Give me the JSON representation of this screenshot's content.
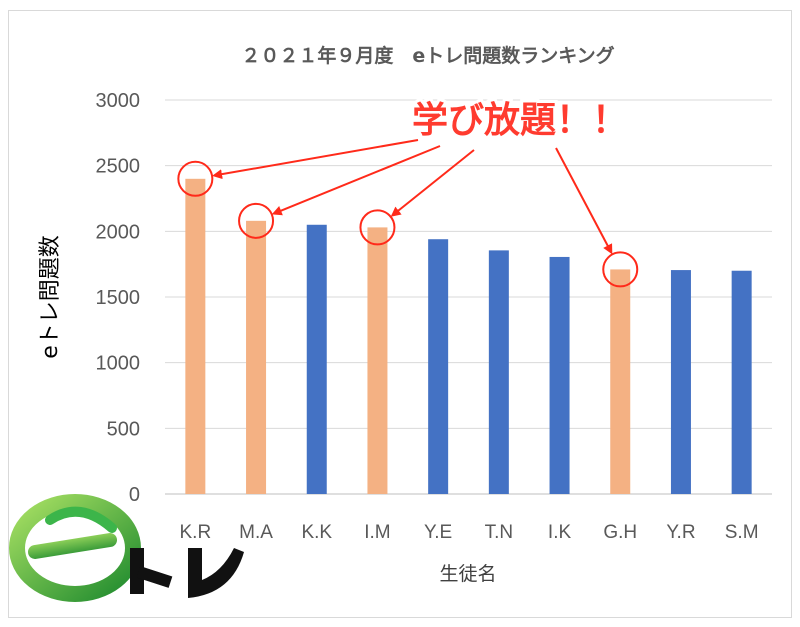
{
  "chart_data": {
    "type": "bar",
    "title": "２０２１年９月度　eトレ問題数ランキング",
    "xlabel": "生徒名",
    "ylabel": "eトレ問題数",
    "ylim": [
      0,
      3000
    ],
    "yticks": [
      0,
      500,
      1000,
      1500,
      2000,
      2500,
      3000
    ],
    "grid": true,
    "categories": [
      "K.R",
      "M.A",
      "K.K",
      "I.M",
      "Y.E",
      "T.N",
      "I.K",
      "G.H",
      "Y.R",
      "S.M"
    ],
    "values": [
      2400,
      2080,
      2050,
      2030,
      1940,
      1855,
      1805,
      1710,
      1705,
      1700
    ],
    "highlighted": [
      true,
      true,
      false,
      true,
      false,
      false,
      false,
      true,
      false,
      false
    ],
    "colors": {
      "normal": "#4472c4",
      "highlight": "#f4b183",
      "callout": "#ff2a1a"
    },
    "annotation": "学び放題！！"
  },
  "logo": {
    "text": "eトレ",
    "icon": "e-logo-icon"
  }
}
